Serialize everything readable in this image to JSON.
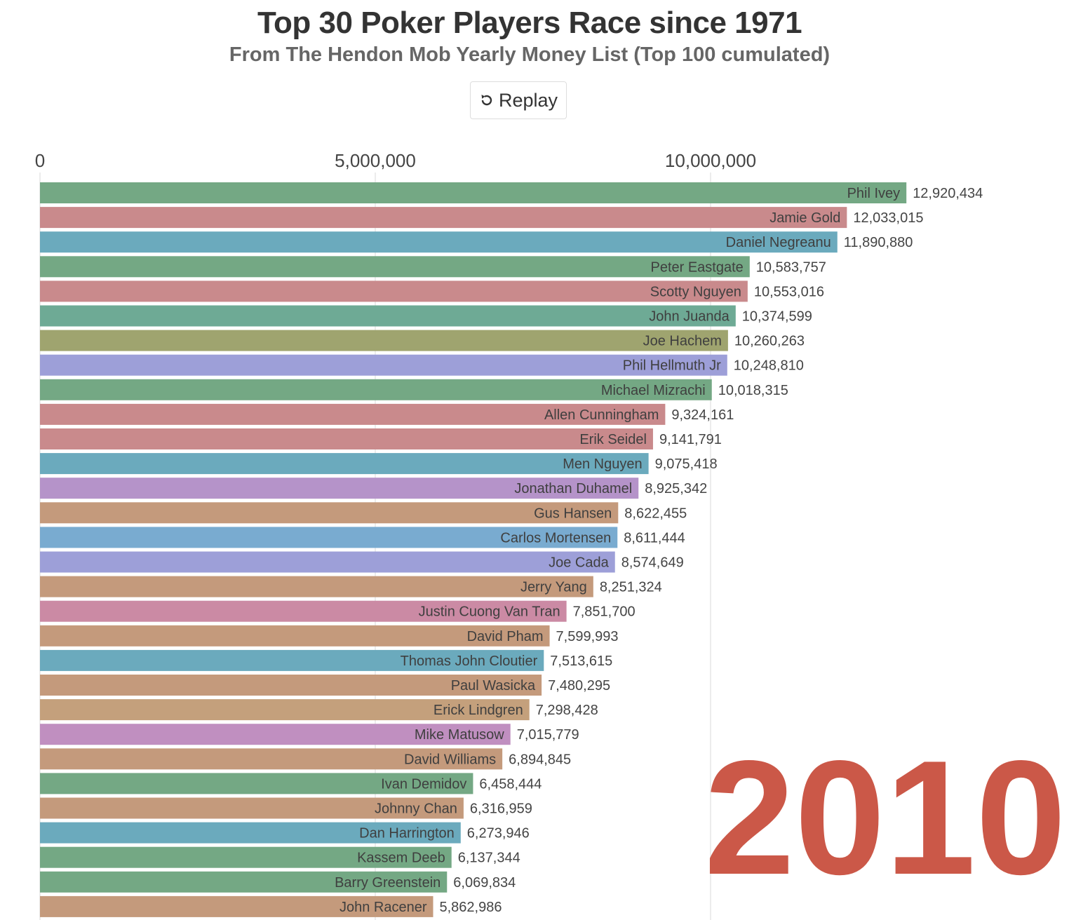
{
  "header": {
    "title": "Top 30 Poker Players Race since 1971",
    "subtitle": "From The Hendon Mob Yearly Money List (Top 100 cumulated)",
    "replay_label": "Replay",
    "replay_icon": "replay-icon"
  },
  "year": "2010",
  "colors": {
    "green": "#74a884",
    "rose": "#c98a8c",
    "teal_blue": "#6baabd",
    "olive": "#9fa46f",
    "periwinkle": "#9d9fd8",
    "violet": "#b593c9",
    "tan": "#c49a7c",
    "sky": "#79abd0",
    "pink": "#cb8aa4",
    "teal_green": "#6eaa95",
    "year": "#c9503f"
  },
  "chart_data": {
    "type": "bar",
    "orientation": "horizontal",
    "title": "Top 30 Poker Players Race since 1971",
    "subtitle": "From The Hendon Mob Yearly Money List (Top 100 cumulated)",
    "xlim": [
      0,
      14000000
    ],
    "x_ticks": [
      0,
      5000000,
      10000000
    ],
    "x_tick_labels": [
      "0",
      "5,000,000",
      "10,000,000"
    ],
    "grid": true,
    "legend": "none",
    "categories": [
      "Phil Ivey",
      "Jamie Gold",
      "Daniel Negreanu",
      "Peter Eastgate",
      "Scotty Nguyen",
      "John Juanda",
      "Joe Hachem",
      "Phil Hellmuth Jr",
      "Michael Mizrachi",
      "Allen Cunningham",
      "Erik Seidel",
      "Men Nguyen",
      "Jonathan Duhamel",
      "Gus Hansen",
      "Carlos Mortensen",
      "Joe Cada",
      "Jerry Yang",
      "Justin Cuong Van Tran",
      "David Pham",
      "Thomas John Cloutier",
      "Paul Wasicka",
      "Erick Lindgren",
      "Mike Matusow",
      "David Williams",
      "Ivan Demidov",
      "Johnny Chan",
      "Dan Harrington",
      "Kassem Deeb",
      "Barry Greenstein",
      "John Racener"
    ],
    "values": [
      12920434,
      12033015,
      11890880,
      10583757,
      10553016,
      10374599,
      10260263,
      10248810,
      10018315,
      9324161,
      9141791,
      9075418,
      8925342,
      8622455,
      8611444,
      8574649,
      8251324,
      7851700,
      7599993,
      7513615,
      7480295,
      7298428,
      7015779,
      6894845,
      6458444,
      6316959,
      6273946,
      6137344,
      6069834,
      5862986
    ],
    "value_labels": [
      "12,920,434",
      "12,033,015",
      "11,890,880",
      "10,583,757",
      "10,553,016",
      "10,374,599",
      "10,260,263",
      "10,248,810",
      "10,018,315",
      "9,324,161",
      "9,141,791",
      "9,075,418",
      "8,925,342",
      "8,622,455",
      "8,611,444",
      "8,574,649",
      "8,251,324",
      "7,851,700",
      "7,599,993",
      "7,513,615",
      "7,480,295",
      "7,298,428",
      "7,015,779",
      "6,894,845",
      "6,458,444",
      "6,316,959",
      "6,273,946",
      "6,137,344",
      "6,069,834",
      "5,862,986"
    ],
    "bar_colors": [
      "#74a884",
      "#c98a8c",
      "#6baabd",
      "#74a884",
      "#c98a8c",
      "#6eaa95",
      "#9fa46f",
      "#9d9fd8",
      "#74a884",
      "#c98a8c",
      "#c98a8c",
      "#6baabd",
      "#b593c9",
      "#c49a7c",
      "#79abd0",
      "#9d9fd8",
      "#c49a7c",
      "#cb8aa4",
      "#c49a7c",
      "#6baabd",
      "#c49a7c",
      "#c4a07c",
      "#c08fc0",
      "#c49a7c",
      "#74a884",
      "#c49a7c",
      "#6baabd",
      "#74a884",
      "#74a884",
      "#c49a7c"
    ]
  }
}
